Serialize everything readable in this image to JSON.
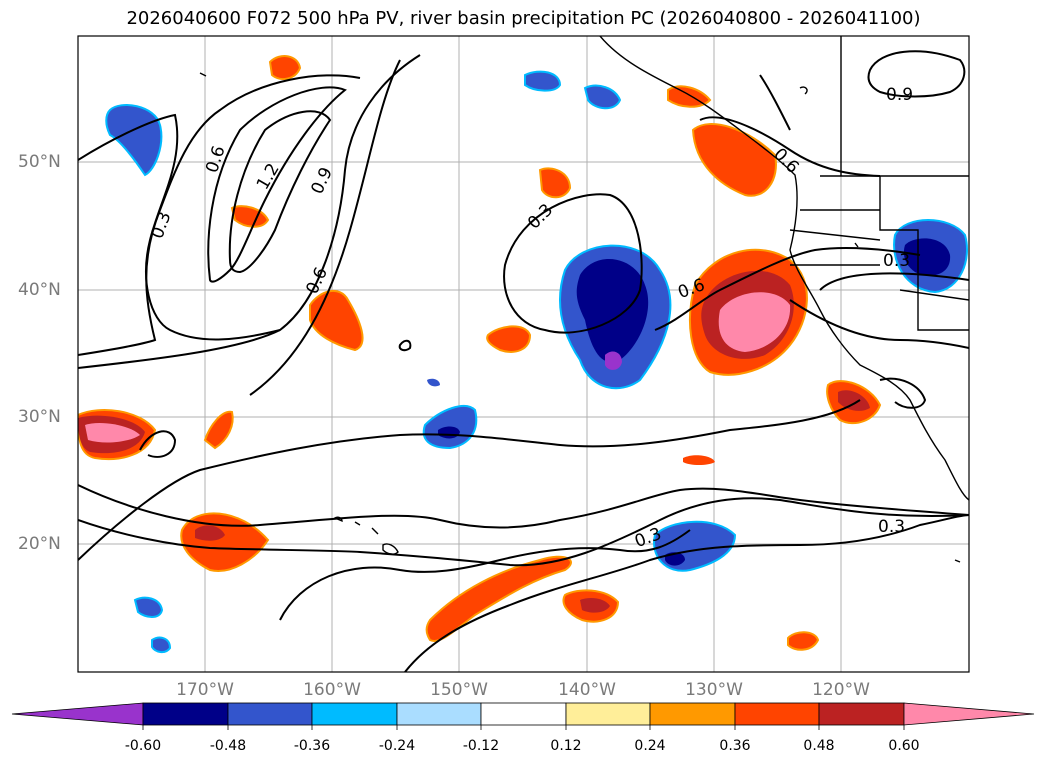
{
  "title": "2026040600 F072 500 hPa PV, river basin precipitation PC (2026040800 - 2026041100)",
  "longitude_labels": [
    "170°W",
    "160°W",
    "150°W",
    "140°W",
    "130°W",
    "120°W"
  ],
  "latitude_labels": [
    "50°N",
    "40°N",
    "30°N",
    "20°N"
  ],
  "contour_labels": [
    "0.3",
    "0.6",
    "1.2",
    "0.9",
    "0.6",
    "0.3",
    "0.6",
    "0.6",
    "0.9",
    "0.3",
    "0.3",
    "0.3"
  ],
  "colorbar": {
    "ticks": [
      "-0.60",
      "-0.48",
      "-0.36",
      "-0.24",
      "-0.12",
      "0.12",
      "0.24",
      "0.36",
      "0.48",
      "0.60"
    ],
    "colors": [
      "#9933cc",
      "#000088",
      "#3355cc",
      "#00bbff",
      "#aaddff",
      "#ffffff",
      "#ffee99",
      "#ff9900",
      "#ff4400",
      "#bb2222",
      "#ff88aa"
    ]
  },
  "colors": {
    "neg_strong": "#000088",
    "neg_mid": "#3355cc",
    "neg_weak": "#00bbff",
    "pos_weak": "#ff9900",
    "pos_mid": "#ff4400",
    "pos_strong": "#bb2222",
    "pos_max": "#ff88aa",
    "neg_max": "#9933cc",
    "contour": "#000000",
    "grid": "#b0b0b0"
  }
}
